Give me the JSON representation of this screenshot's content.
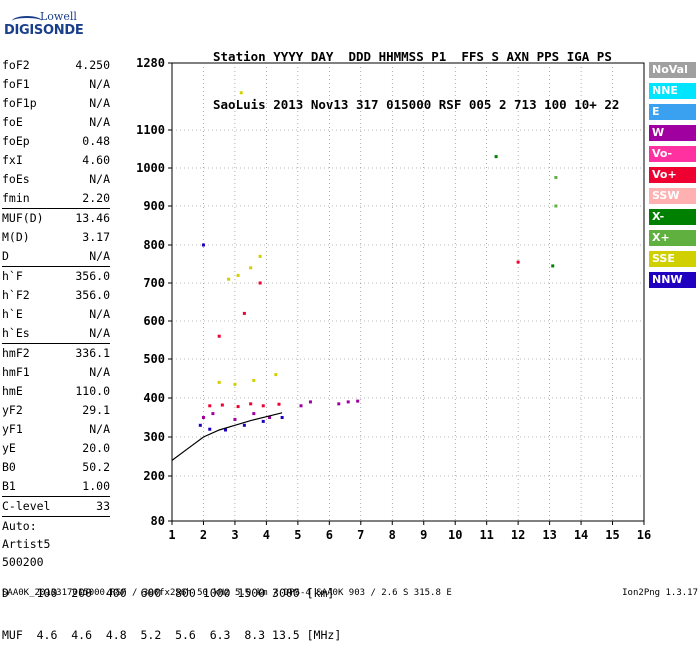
{
  "logo": {
    "top": "Lowell",
    "bottom": "DIGISONDE"
  },
  "header": {
    "line1": "Station YYYY DAY  DDD HHMMSS P1  FFS S AXN PPS IGA PS",
    "line2": "SaoLuis 2013 Nov13 317 015000 RSF 005 2 713 100 10+ 22"
  },
  "params": {
    "group1": [
      {
        "k": "foF2",
        "v": "4.250"
      },
      {
        "k": "foF1",
        "v": "N/A"
      },
      {
        "k": "foF1p",
        "v": "N/A"
      },
      {
        "k": "foE",
        "v": "N/A"
      },
      {
        "k": "foEp",
        "v": "0.48"
      },
      {
        "k": "fxI",
        "v": "4.60"
      },
      {
        "k": "foEs",
        "v": "N/A"
      },
      {
        "k": "fmin",
        "v": "2.20"
      }
    ],
    "group2": [
      {
        "k": "MUF(D)",
        "v": "13.46"
      },
      {
        "k": "M(D)",
        "v": "3.17"
      },
      {
        "k": "D",
        "v": "N/A"
      }
    ],
    "group3": [
      {
        "k": "h`F",
        "v": "356.0"
      },
      {
        "k": "h`F2",
        "v": "356.0"
      },
      {
        "k": "h`E",
        "v": "N/A"
      },
      {
        "k": "h`Es",
        "v": "N/A"
      }
    ],
    "group4": [
      {
        "k": "hmF2",
        "v": "336.1"
      },
      {
        "k": "hmF1",
        "v": "N/A"
      },
      {
        "k": "hmE",
        "v": "110.0"
      },
      {
        "k": "yF2",
        "v": "29.1"
      },
      {
        "k": "yF1",
        "v": "N/A"
      },
      {
        "k": "yE",
        "v": "20.0"
      },
      {
        "k": "B0",
        "v": "50.2"
      },
      {
        "k": "B1",
        "v": "1.00"
      }
    ],
    "clevel": {
      "k": "C-level",
      "v": "33"
    },
    "auto": [
      "Auto:",
      "Artist5",
      "500200"
    ]
  },
  "legend": [
    {
      "label": "NoVal",
      "color": "#a0a0a0"
    },
    {
      "label": "NNE",
      "color": "#00e5ff"
    },
    {
      "label": "E",
      "color": "#3aa0f0"
    },
    {
      "label": "W",
      "color": "#a000a0"
    },
    {
      "label": "Vo-",
      "color": "#ff30a0"
    },
    {
      "label": "Vo+",
      "color": "#ee0030"
    },
    {
      "label": "SSW",
      "color": "#ffb0b0"
    },
    {
      "label": "X-",
      "color": "#008000"
    },
    {
      "label": "X+",
      "color": "#60b040"
    },
    {
      "label": "SSE",
      "color": "#d0d000"
    },
    {
      "label": "NNW",
      "color": "#2000c0"
    }
  ],
  "footer": {
    "line1": "D    100  200  400  600  800 1000 1500 3000 [km]",
    "line2": "MUF  4.6  4.6  4.8  5.2  5.6  6.3  8.3 13.5 [MHz]",
    "bottom_left": "SAA0K_2013317015000.RSF / 300fx256h 50 kHz 5.0 km / DPS-4 SAA0K 903 / 2.6 S 315.8 E",
    "bottom_right": "Ion2Png 1.3.17"
  },
  "chart_data": {
    "type": "scatter",
    "xlabel": "",
    "ylabel": "",
    "xlim": [
      1,
      16
    ],
    "ylim": [
      80,
      1280
    ],
    "x_ticks": [
      1,
      2,
      3,
      4,
      5,
      6,
      7,
      8,
      9,
      10,
      11,
      12,
      13,
      14,
      15,
      16
    ],
    "y_ticks": [
      80,
      200,
      300,
      400,
      500,
      600,
      700,
      800,
      900,
      1000,
      1100,
      1280
    ],
    "grid": true,
    "legend_position": "right",
    "series": [
      {
        "name": "W",
        "points": [
          [
            2.0,
            350
          ],
          [
            2.3,
            360
          ],
          [
            3.0,
            345
          ],
          [
            3.6,
            360
          ],
          [
            4.1,
            350
          ],
          [
            5.1,
            380
          ],
          [
            5.4,
            390
          ],
          [
            6.3,
            385
          ],
          [
            6.6,
            390
          ],
          [
            6.9,
            392
          ]
        ]
      },
      {
        "name": "Vo+",
        "points": [
          [
            2.2,
            380
          ],
          [
            2.6,
            382
          ],
          [
            3.1,
            378
          ],
          [
            3.5,
            385
          ],
          [
            3.9,
            380
          ],
          [
            4.4,
            384
          ],
          [
            2.5,
            560
          ],
          [
            3.3,
            620
          ],
          [
            3.8,
            700
          ],
          [
            12.0,
            755
          ]
        ]
      },
      {
        "name": "SSE",
        "points": [
          [
            2.5,
            440
          ],
          [
            3.0,
            435
          ],
          [
            3.6,
            445
          ],
          [
            4.3,
            460
          ],
          [
            2.8,
            710
          ],
          [
            3.1,
            720
          ],
          [
            3.5,
            740
          ],
          [
            3.8,
            770
          ],
          [
            3.2,
            1200
          ]
        ]
      },
      {
        "name": "NNW",
        "points": [
          [
            1.9,
            330
          ],
          [
            2.2,
            320
          ],
          [
            2.7,
            318
          ],
          [
            3.3,
            330
          ],
          [
            3.9,
            340
          ],
          [
            4.5,
            350
          ],
          [
            2.0,
            800
          ]
        ]
      },
      {
        "name": "X-",
        "points": [
          [
            11.3,
            1030
          ],
          [
            13.1,
            745
          ]
        ]
      },
      {
        "name": "X+",
        "points": [
          [
            13.2,
            975
          ],
          [
            13.2,
            900
          ]
        ]
      }
    ],
    "trace": [
      [
        1,
        240
      ],
      [
        1.5,
        270
      ],
      [
        2,
        300
      ],
      [
        2.5,
        318
      ],
      [
        3,
        330
      ],
      [
        3.5,
        342
      ],
      [
        4,
        352
      ],
      [
        4.5,
        362
      ]
    ]
  }
}
